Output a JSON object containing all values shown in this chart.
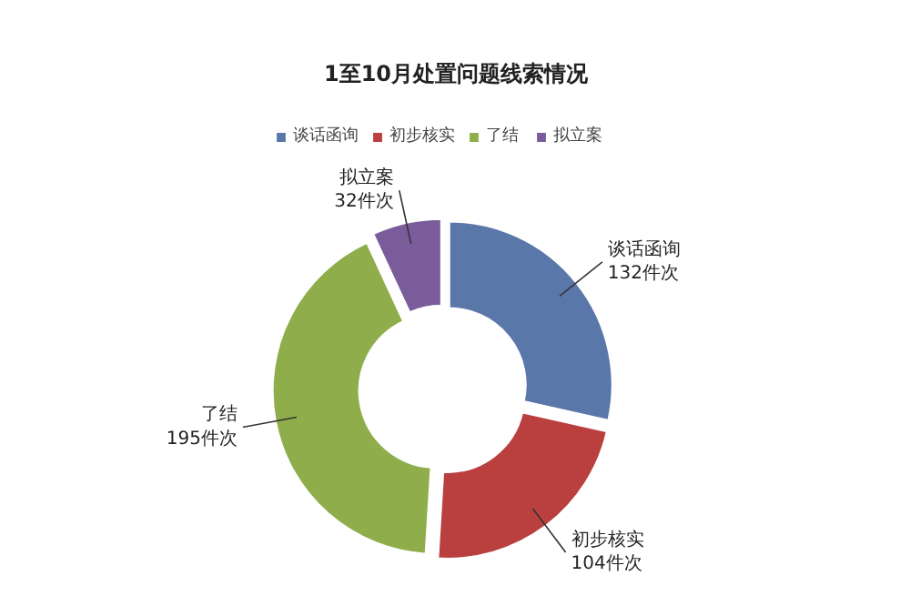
{
  "chart_data": {
    "type": "donut",
    "title": "1至10月处置问题线索情况",
    "categories": [
      "谈话函询",
      "初步核实",
      "了结",
      "拟立案"
    ],
    "values": [
      132,
      104,
      195,
      32
    ],
    "colors": [
      "#5a77aa",
      "#b9403f",
      "#8fae4b",
      "#7a5c9b"
    ],
    "value_labels": [
      "132件次",
      "104件次",
      "195件次",
      "32件次"
    ],
    "legend": "top"
  }
}
